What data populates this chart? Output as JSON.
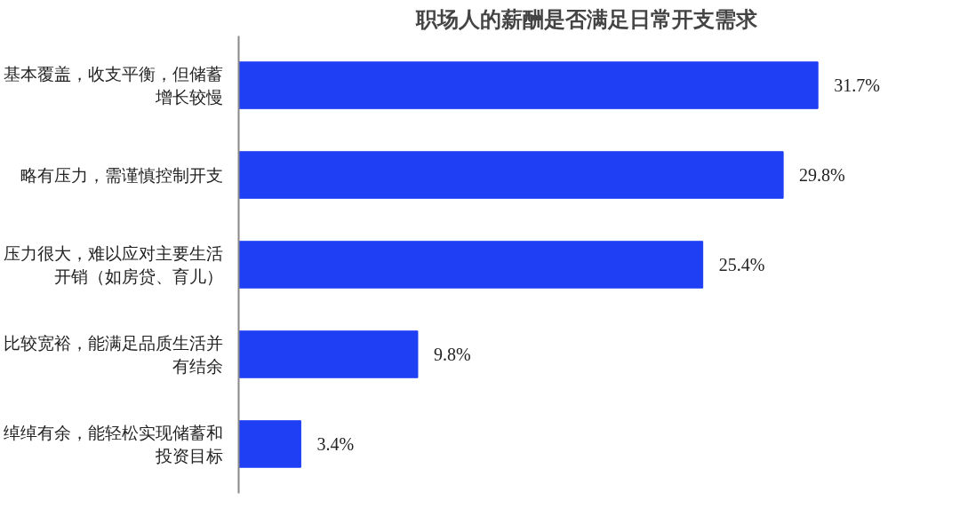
{
  "chart_data": {
    "type": "bar",
    "orientation": "horizontal",
    "title": "职场人的薪酬是否满足日常开支需求",
    "categories": [
      "基本覆盖，收支平衡，但储蓄增长较慢",
      "略有压力，需谨慎控制开支",
      "压力很大，难以应对主要生活开销（如房贷、育儿）",
      "比较宽裕，能满足品质生活并有结余",
      "绰绰有余，能轻松实现储蓄和投资目标"
    ],
    "values": [
      31.7,
      29.8,
      25.4,
      9.8,
      3.4
    ],
    "value_labels": [
      "31.7%",
      "29.8%",
      "25.4%",
      "9.8%",
      "3.4%"
    ],
    "color": "#1f3ff5",
    "grid": false
  }
}
